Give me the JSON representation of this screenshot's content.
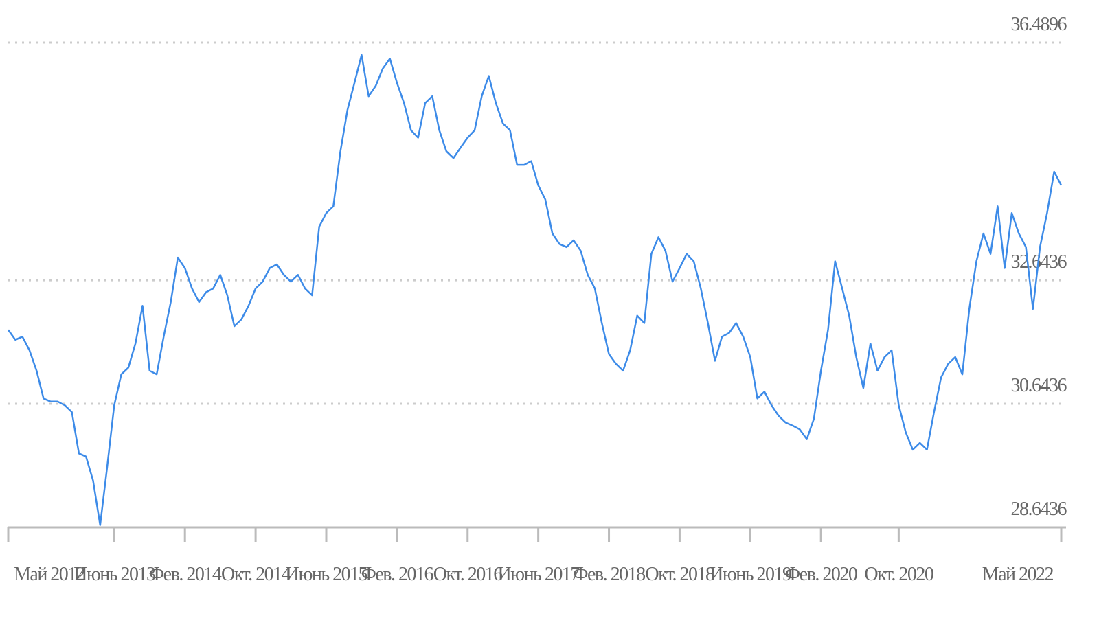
{
  "chart_data": {
    "type": "line",
    "color": "#3d8be8",
    "categories": [
      "Май 2012",
      null,
      null,
      null,
      null,
      null,
      null,
      null,
      null,
      null,
      null,
      null,
      null,
      null,
      null,
      "Июнь 2013",
      null,
      null,
      null,
      null,
      null,
      null,
      null,
      null,
      null,
      "Фев. 2014",
      null,
      null,
      null,
      null,
      null,
      null,
      null,
      null,
      null,
      "Окт. 2014",
      null,
      null,
      null,
      null,
      null,
      null,
      null,
      null,
      null,
      "Июнь 2015",
      null,
      null,
      null,
      null,
      null,
      null,
      null,
      null,
      null,
      "Фев. 2016",
      null,
      null,
      null,
      null,
      null,
      null,
      null,
      null,
      null,
      "Окт. 2016",
      null,
      null,
      null,
      null,
      null,
      null,
      null,
      null,
      null,
      "Июнь 2017",
      null,
      null,
      null,
      null,
      null,
      null,
      null,
      null,
      null,
      "Фев. 2018",
      null,
      null,
      null,
      null,
      null,
      null,
      null,
      null,
      null,
      "Окт. 2018",
      null,
      null,
      null,
      null,
      null,
      null,
      null,
      null,
      null,
      "Июнь 2019",
      null,
      null,
      null,
      null,
      null,
      null,
      null,
      null,
      null,
      "Фев. 2020",
      null,
      null,
      null,
      null,
      null,
      null,
      null,
      null,
      null,
      null,
      "Окт. 2020",
      null,
      null,
      null,
      null,
      null,
      null,
      null,
      null,
      null,
      null,
      null,
      null,
      null,
      null,
      null,
      null,
      null,
      null,
      null,
      null,
      null,
      null,
      "Май 2022"
    ],
    "values": [
      31.84,
      31.68,
      31.73,
      31.51,
      31.18,
      30.73,
      30.68,
      30.68,
      30.62,
      30.51,
      29.84,
      29.79,
      29.4,
      28.68,
      29.62,
      30.62,
      31.12,
      31.23,
      31.62,
      32.23,
      31.18,
      31.12,
      31.73,
      32.29,
      33.01,
      32.84,
      32.51,
      32.29,
      32.45,
      32.51,
      32.73,
      32.4,
      31.9,
      32.01,
      32.23,
      32.51,
      32.62,
      32.84,
      32.9,
      32.73,
      32.62,
      32.73,
      32.51,
      32.4,
      33.51,
      33.73,
      33.84,
      34.73,
      35.4,
      35.84,
      36.29,
      35.62,
      35.79,
      36.07,
      36.23,
      35.84,
      35.51,
      35.07,
      34.95,
      35.51,
      35.62,
      35.07,
      34.73,
      34.62,
      34.79,
      34.95,
      35.07,
      35.62,
      35.95,
      35.51,
      35.18,
      35.07,
      34.51,
      34.51,
      34.57,
      34.18,
      33.95,
      33.4,
      33.23,
      33.18,
      33.29,
      33.12,
      32.73,
      32.51,
      31.95,
      31.45,
      31.29,
      31.18,
      31.51,
      32.07,
      31.95,
      33.07,
      33.34,
      33.12,
      32.62,
      32.84,
      33.07,
      32.95,
      32.51,
      31.95,
      31.34,
      31.73,
      31.79,
      31.95,
      31.73,
      31.4,
      30.73,
      30.84,
      30.62,
      30.45,
      30.34,
      30.29,
      30.23,
      30.07,
      30.4,
      31.18,
      31.84,
      32.95,
      32.51,
      32.07,
      31.4,
      30.9,
      31.62,
      31.18,
      31.4,
      31.51,
      30.62,
      30.18,
      29.9,
      30.01,
      29.9,
      30.51,
      31.07,
      31.29,
      31.4,
      31.12,
      32.18,
      32.95,
      33.4,
      33.07,
      33.84,
      32.84,
      33.73,
      33.4,
      33.18,
      32.18,
      33.18,
      33.73,
      34.4,
      34.18
    ],
    "ylim": [
      28.6436,
      36.4896
    ],
    "yticks": [
      28.6436,
      30.6436,
      32.6436,
      36.4896
    ],
    "grid": true
  }
}
